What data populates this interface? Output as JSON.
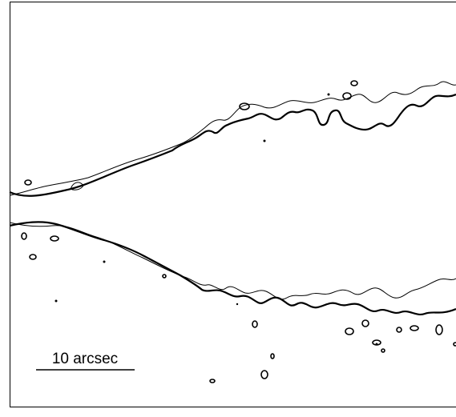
{
  "scale_bar": {
    "label": "10 arcsec"
  }
}
